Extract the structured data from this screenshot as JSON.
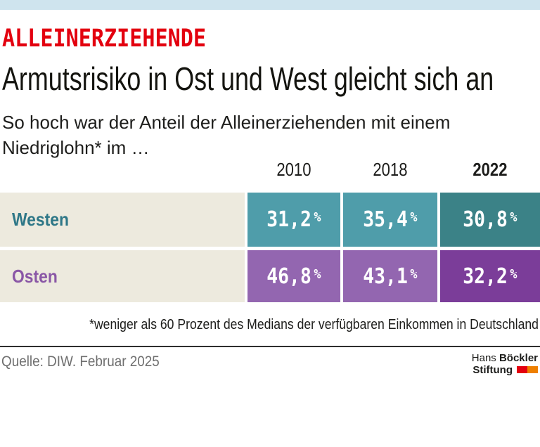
{
  "colors": {
    "topbar": "#cfe4ee",
    "accent_red": "#e3000f",
    "row_bg": "#edeade",
    "west_label": "#2e7787",
    "west_cell": "#4f9daa",
    "west_cell_highlight": "#3b8287",
    "east_label": "#8a57a6",
    "east_cell": "#9366b0",
    "east_cell_highlight": "#7b3d99",
    "logo_red": "#e3000f",
    "logo_orange": "#ee7f00"
  },
  "kicker": "ALLEINERZIEHENDE",
  "title": "Armutsrisiko in Ost und West gleicht sich an",
  "subtitle": "So hoch war der Anteil der Alleinerziehenden mit einem Niedriglohn* im …",
  "chart_data": {
    "type": "table",
    "title": "Armutsrisiko in Ost und West gleicht sich an",
    "subtitle": "So hoch war der Anteil der Alleinerziehenden mit einem Niedriglohn* im …",
    "unit": "%",
    "columns": [
      "2010",
      "2018",
      "2022"
    ],
    "emphasized_column": "2022",
    "rows": [
      {
        "label": "Westen",
        "values": [
          31.2,
          35.4,
          30.8
        ]
      },
      {
        "label": "Osten",
        "values": [
          46.8,
          43.1,
          32.2
        ]
      }
    ]
  },
  "table": {
    "years": {
      "y2010": "2010",
      "y2018": "2018",
      "y2022": "2022"
    },
    "unit": "%",
    "west": {
      "label": "Westen",
      "v1": "31,2",
      "v2": "35,4",
      "v3": "30,8"
    },
    "east": {
      "label": "Osten",
      "v1": "46,8",
      "v2": "43,1",
      "v3": "32,2"
    }
  },
  "footnote": "*weniger als 60 Prozent des Medians der verfügbaren Einkommen in Deutschland",
  "source": "Quelle: DIW. Februar 2025",
  "logo": {
    "name_regular": "Hans ",
    "name_bold": "Böckler",
    "line2": "Stiftung"
  }
}
